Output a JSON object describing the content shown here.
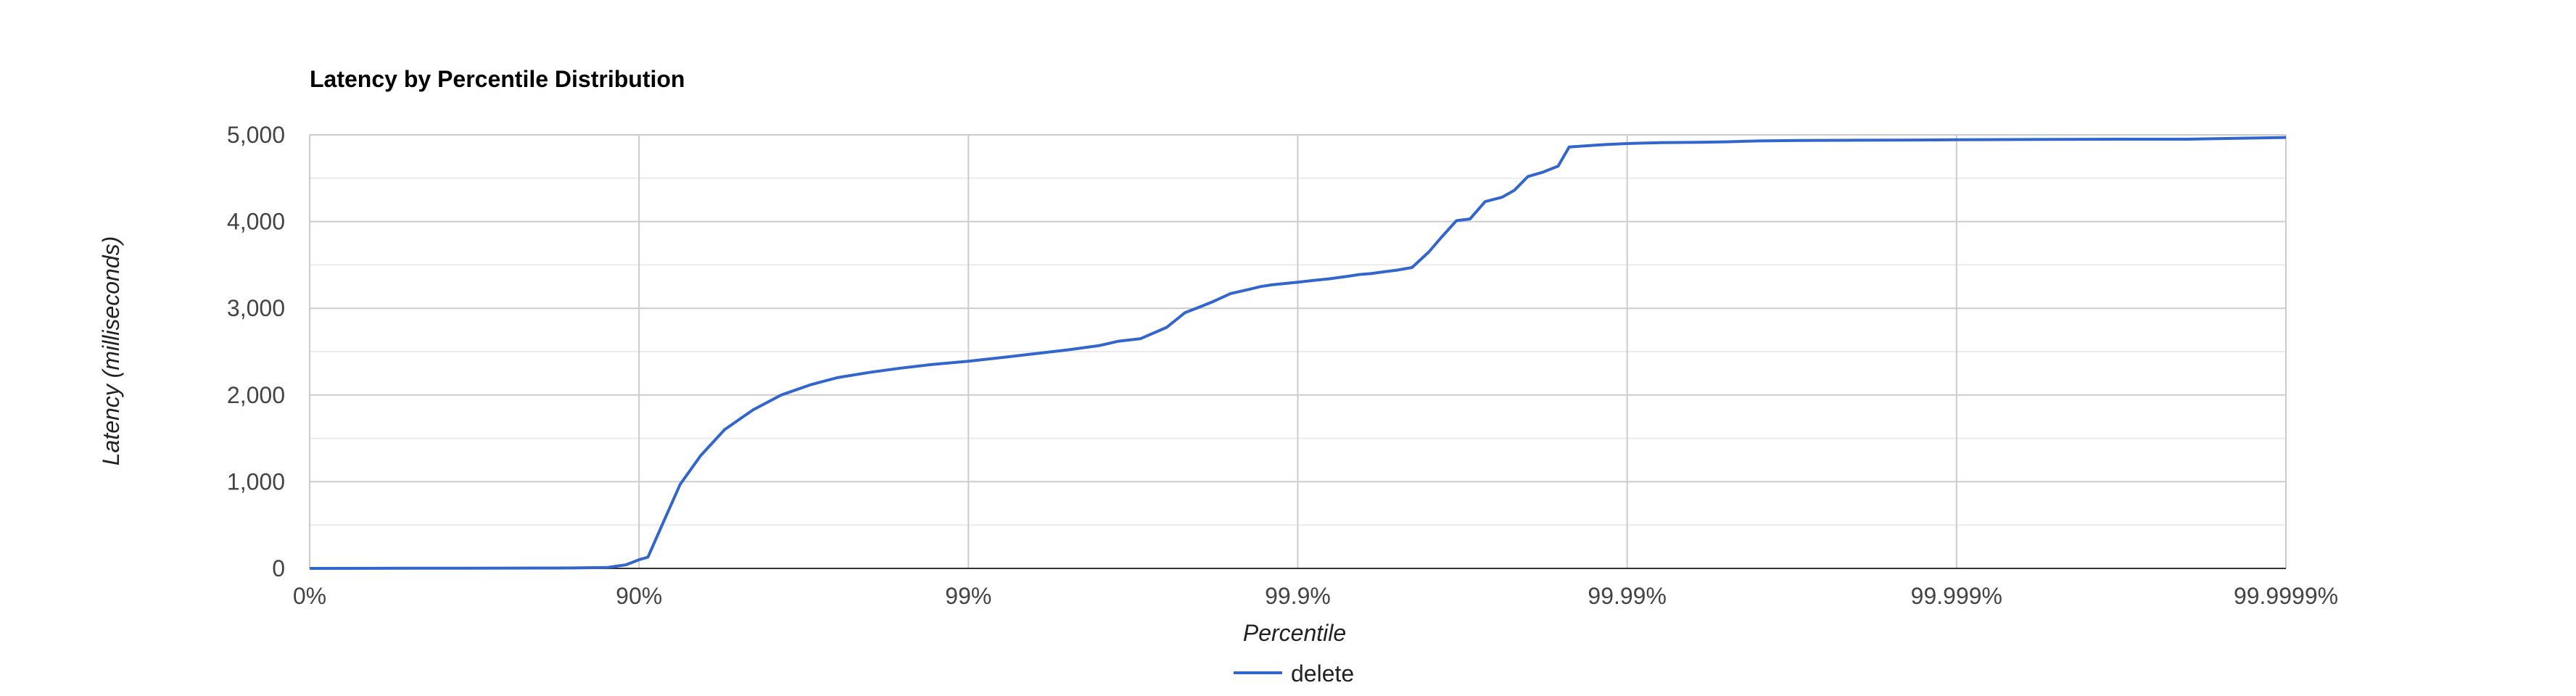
{
  "chart_data": {
    "type": "line",
    "title": "Latency by Percentile Distribution",
    "xlabel": "Percentile",
    "ylabel": "Latency (milliseconds)",
    "x_scale": "nines",
    "x_tick_labels": [
      "0%",
      "90%",
      "99%",
      "99.9%",
      "99.99%",
      "99.999%",
      "99.9999%"
    ],
    "y_ticks": [
      0,
      1000,
      2000,
      3000,
      4000,
      5000
    ],
    "y_tick_labels": [
      "0",
      "1,000",
      "2,000",
      "3,000",
      "4,000",
      "5,000"
    ],
    "ylim": [
      0,
      5000
    ],
    "grid": true,
    "legend_position": "bottom",
    "colors": {
      "series": "#3366cc",
      "grid_major": "#cccccc",
      "grid_minor": "#ebebeb",
      "baseline": "#333333"
    },
    "series": [
      {
        "name": "delete",
        "x": [
          0,
          50,
          75,
          80,
          84,
          87.5,
          88,
          89,
          89.7,
          90,
          90.6,
          91.6,
          92.5,
          93.5,
          94.5,
          95.5,
          96.3,
          97,
          97.5,
          98,
          98.4,
          98.7,
          99,
          99.2,
          99.35,
          99.5,
          99.6,
          99.65,
          99.7,
          99.75,
          99.78,
          99.8,
          99.82,
          99.84,
          99.86,
          99.87,
          99.88,
          99.89,
          99.9,
          99.91,
          99.92,
          99.93,
          99.935,
          99.94,
          99.945,
          99.95,
          99.955,
          99.96,
          99.963,
          99.967,
          99.97,
          99.973,
          99.976,
          99.978,
          99.98,
          99.982,
          99.9838,
          99.985,
          99.9874,
          99.9885,
          99.99,
          99.991,
          99.992,
          99.994,
          99.995,
          99.996,
          99.997,
          99.998,
          99.9985,
          99.999,
          99.9992,
          99.9995,
          99.9997,
          99.9998,
          99.9999
        ],
        "y": [
          0,
          2,
          3,
          4,
          5,
          10,
          20,
          40,
          80,
          100,
          130,
          550,
          970,
          1300,
          1600,
          1830,
          2000,
          2120,
          2200,
          2260,
          2310,
          2350,
          2390,
          2430,
          2470,
          2520,
          2570,
          2620,
          2650,
          2780,
          2950,
          3010,
          3080,
          3170,
          3220,
          3250,
          3270,
          3285,
          3300,
          3320,
          3340,
          3370,
          3390,
          3400,
          3420,
          3440,
          3470,
          3650,
          3800,
          4010,
          4030,
          4230,
          4280,
          4360,
          4520,
          4570,
          4640,
          4860,
          4880,
          4890,
          4900,
          4905,
          4910,
          4915,
          4920,
          4930,
          4935,
          4938,
          4940,
          4943,
          4945,
          4948,
          4950,
          4950,
          4970
        ]
      }
    ]
  }
}
